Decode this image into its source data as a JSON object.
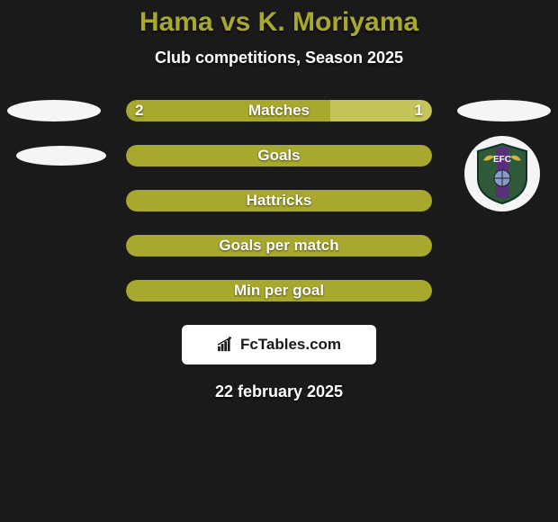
{
  "title": "Hama vs K. Moriyama",
  "subtitle": "Club competitions, Season 2025",
  "colors": {
    "left": "#a8a82f",
    "right": "#c4c45a",
    "pill_bg": "#a8a82f",
    "ellipse": "#f5f5f5",
    "bg": "#1a1a1a"
  },
  "rows": [
    {
      "label": "Matches",
      "left_val": "2",
      "right_val": "1",
      "left_pct": 66.7,
      "right_pct": 33.3,
      "show_vals": true
    },
    {
      "label": "Goals",
      "left_val": "",
      "right_val": "",
      "left_pct": 100,
      "right_pct": 0,
      "show_vals": false
    },
    {
      "label": "Hattricks",
      "left_val": "",
      "right_val": "",
      "left_pct": 100,
      "right_pct": 0,
      "show_vals": false
    },
    {
      "label": "Goals per match",
      "left_val": "",
      "right_val": "",
      "left_pct": 100,
      "right_pct": 0,
      "show_vals": false
    },
    {
      "label": "Min per goal",
      "left_val": "",
      "right_val": "",
      "left_pct": 100,
      "right_pct": 0,
      "show_vals": false
    }
  ],
  "branding": "FcTables.com",
  "date": "22 february 2025",
  "crest": {
    "initials": "EFC",
    "badge_fill": "#2e5a3a",
    "stripe": "#5a2f7a"
  }
}
